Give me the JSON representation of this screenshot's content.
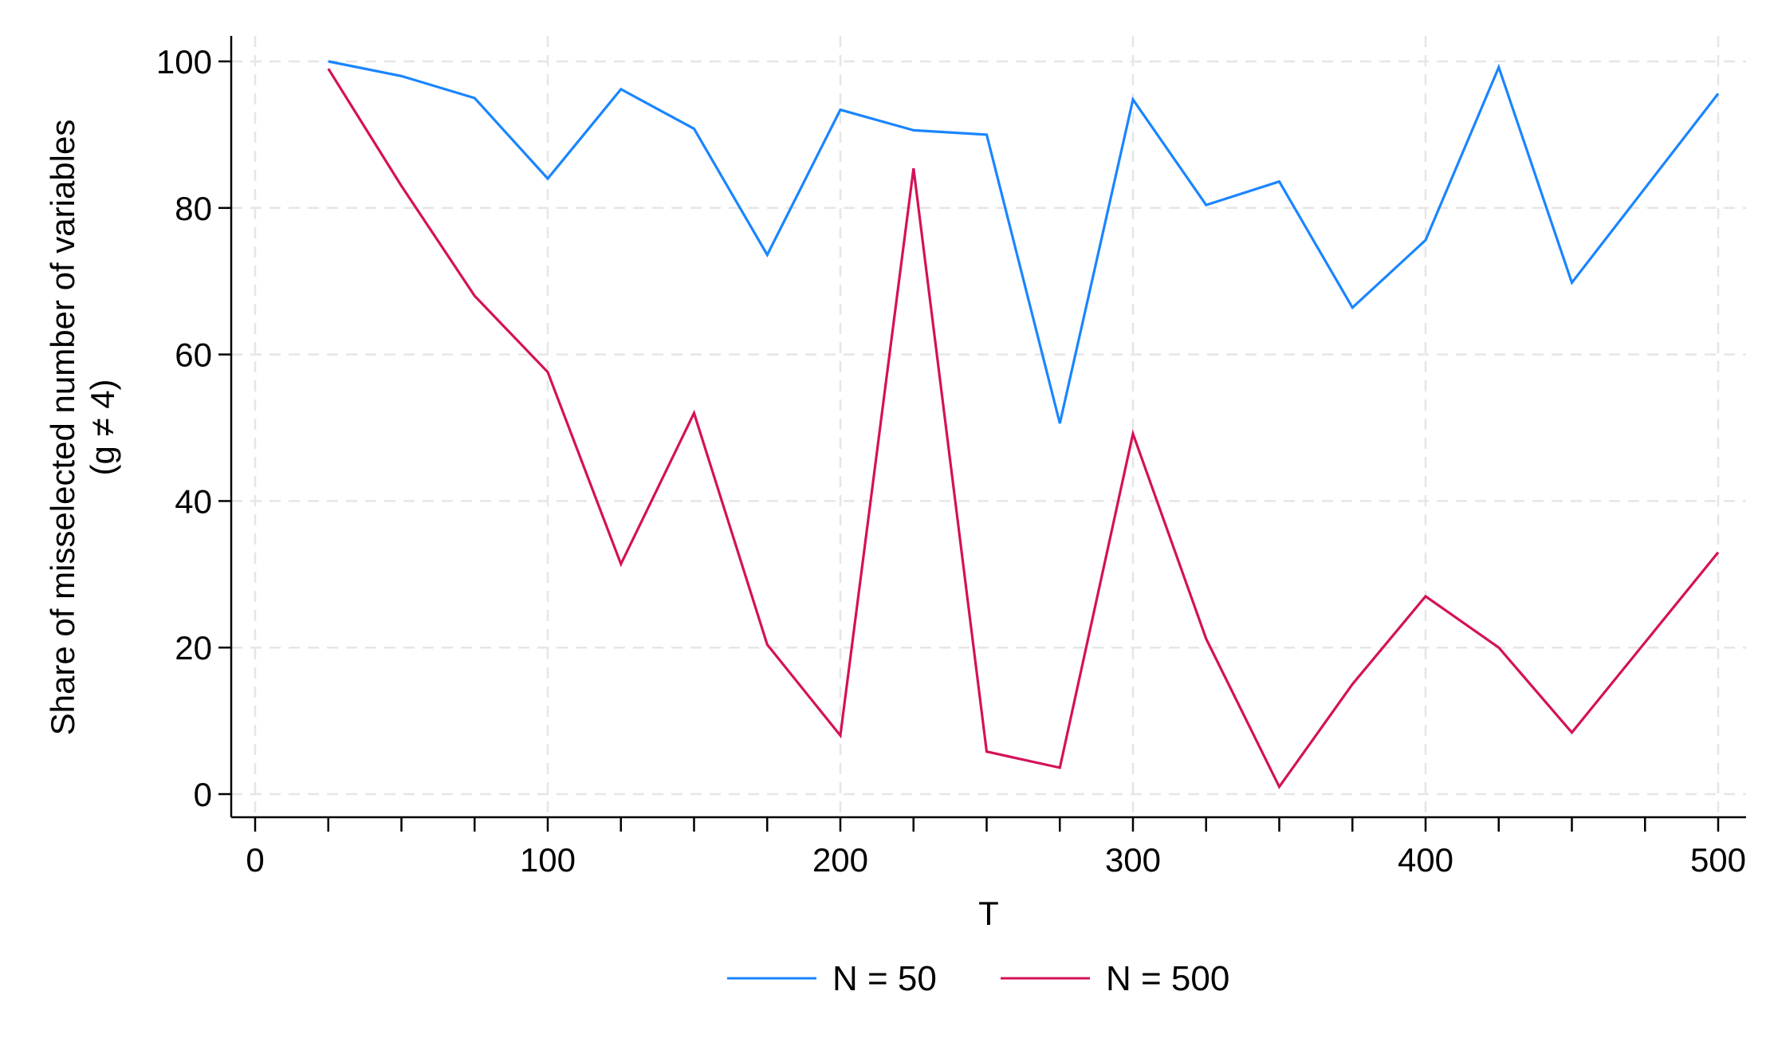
{
  "chart_data": {
    "type": "line",
    "title": "",
    "xlabel": "T",
    "ylabel": "Share of misselected number of variables",
    "ylabel_line2": "(g ≠ 4)",
    "xlim": [
      0,
      500
    ],
    "ylim": [
      0,
      100
    ],
    "x_ticks": [
      0,
      100,
      200,
      300,
      400,
      500
    ],
    "x_minor_ticks": [
      25,
      50,
      75,
      125,
      150,
      175,
      225,
      250,
      275,
      325,
      350,
      375,
      425,
      450,
      475
    ],
    "y_ticks": [
      0,
      20,
      40,
      60,
      80,
      100
    ],
    "grid": true,
    "legend_position": "bottom",
    "x": [
      25,
      50,
      75,
      100,
      125,
      150,
      175,
      200,
      225,
      250,
      275,
      300,
      325,
      350,
      375,
      400,
      425,
      450,
      500
    ],
    "series": [
      {
        "name": "N = 50",
        "color": "#1a85ff",
        "values": [
          100,
          98,
          95,
          84,
          96.2,
          90.8,
          73.6,
          93.4,
          90.6,
          90,
          50.6,
          94.8,
          80.4,
          83.6,
          66.4,
          75.6,
          99.2,
          69.8,
          95.6
        ]
      },
      {
        "name": "N = 500",
        "color": "#d41159",
        "values": [
          99,
          83,
          68,
          57.6,
          31.4,
          52,
          20.4,
          8,
          85.4,
          5.8,
          3.6,
          49.2,
          21.2,
          1,
          15,
          27,
          20,
          8.4,
          33
        ]
      }
    ]
  }
}
